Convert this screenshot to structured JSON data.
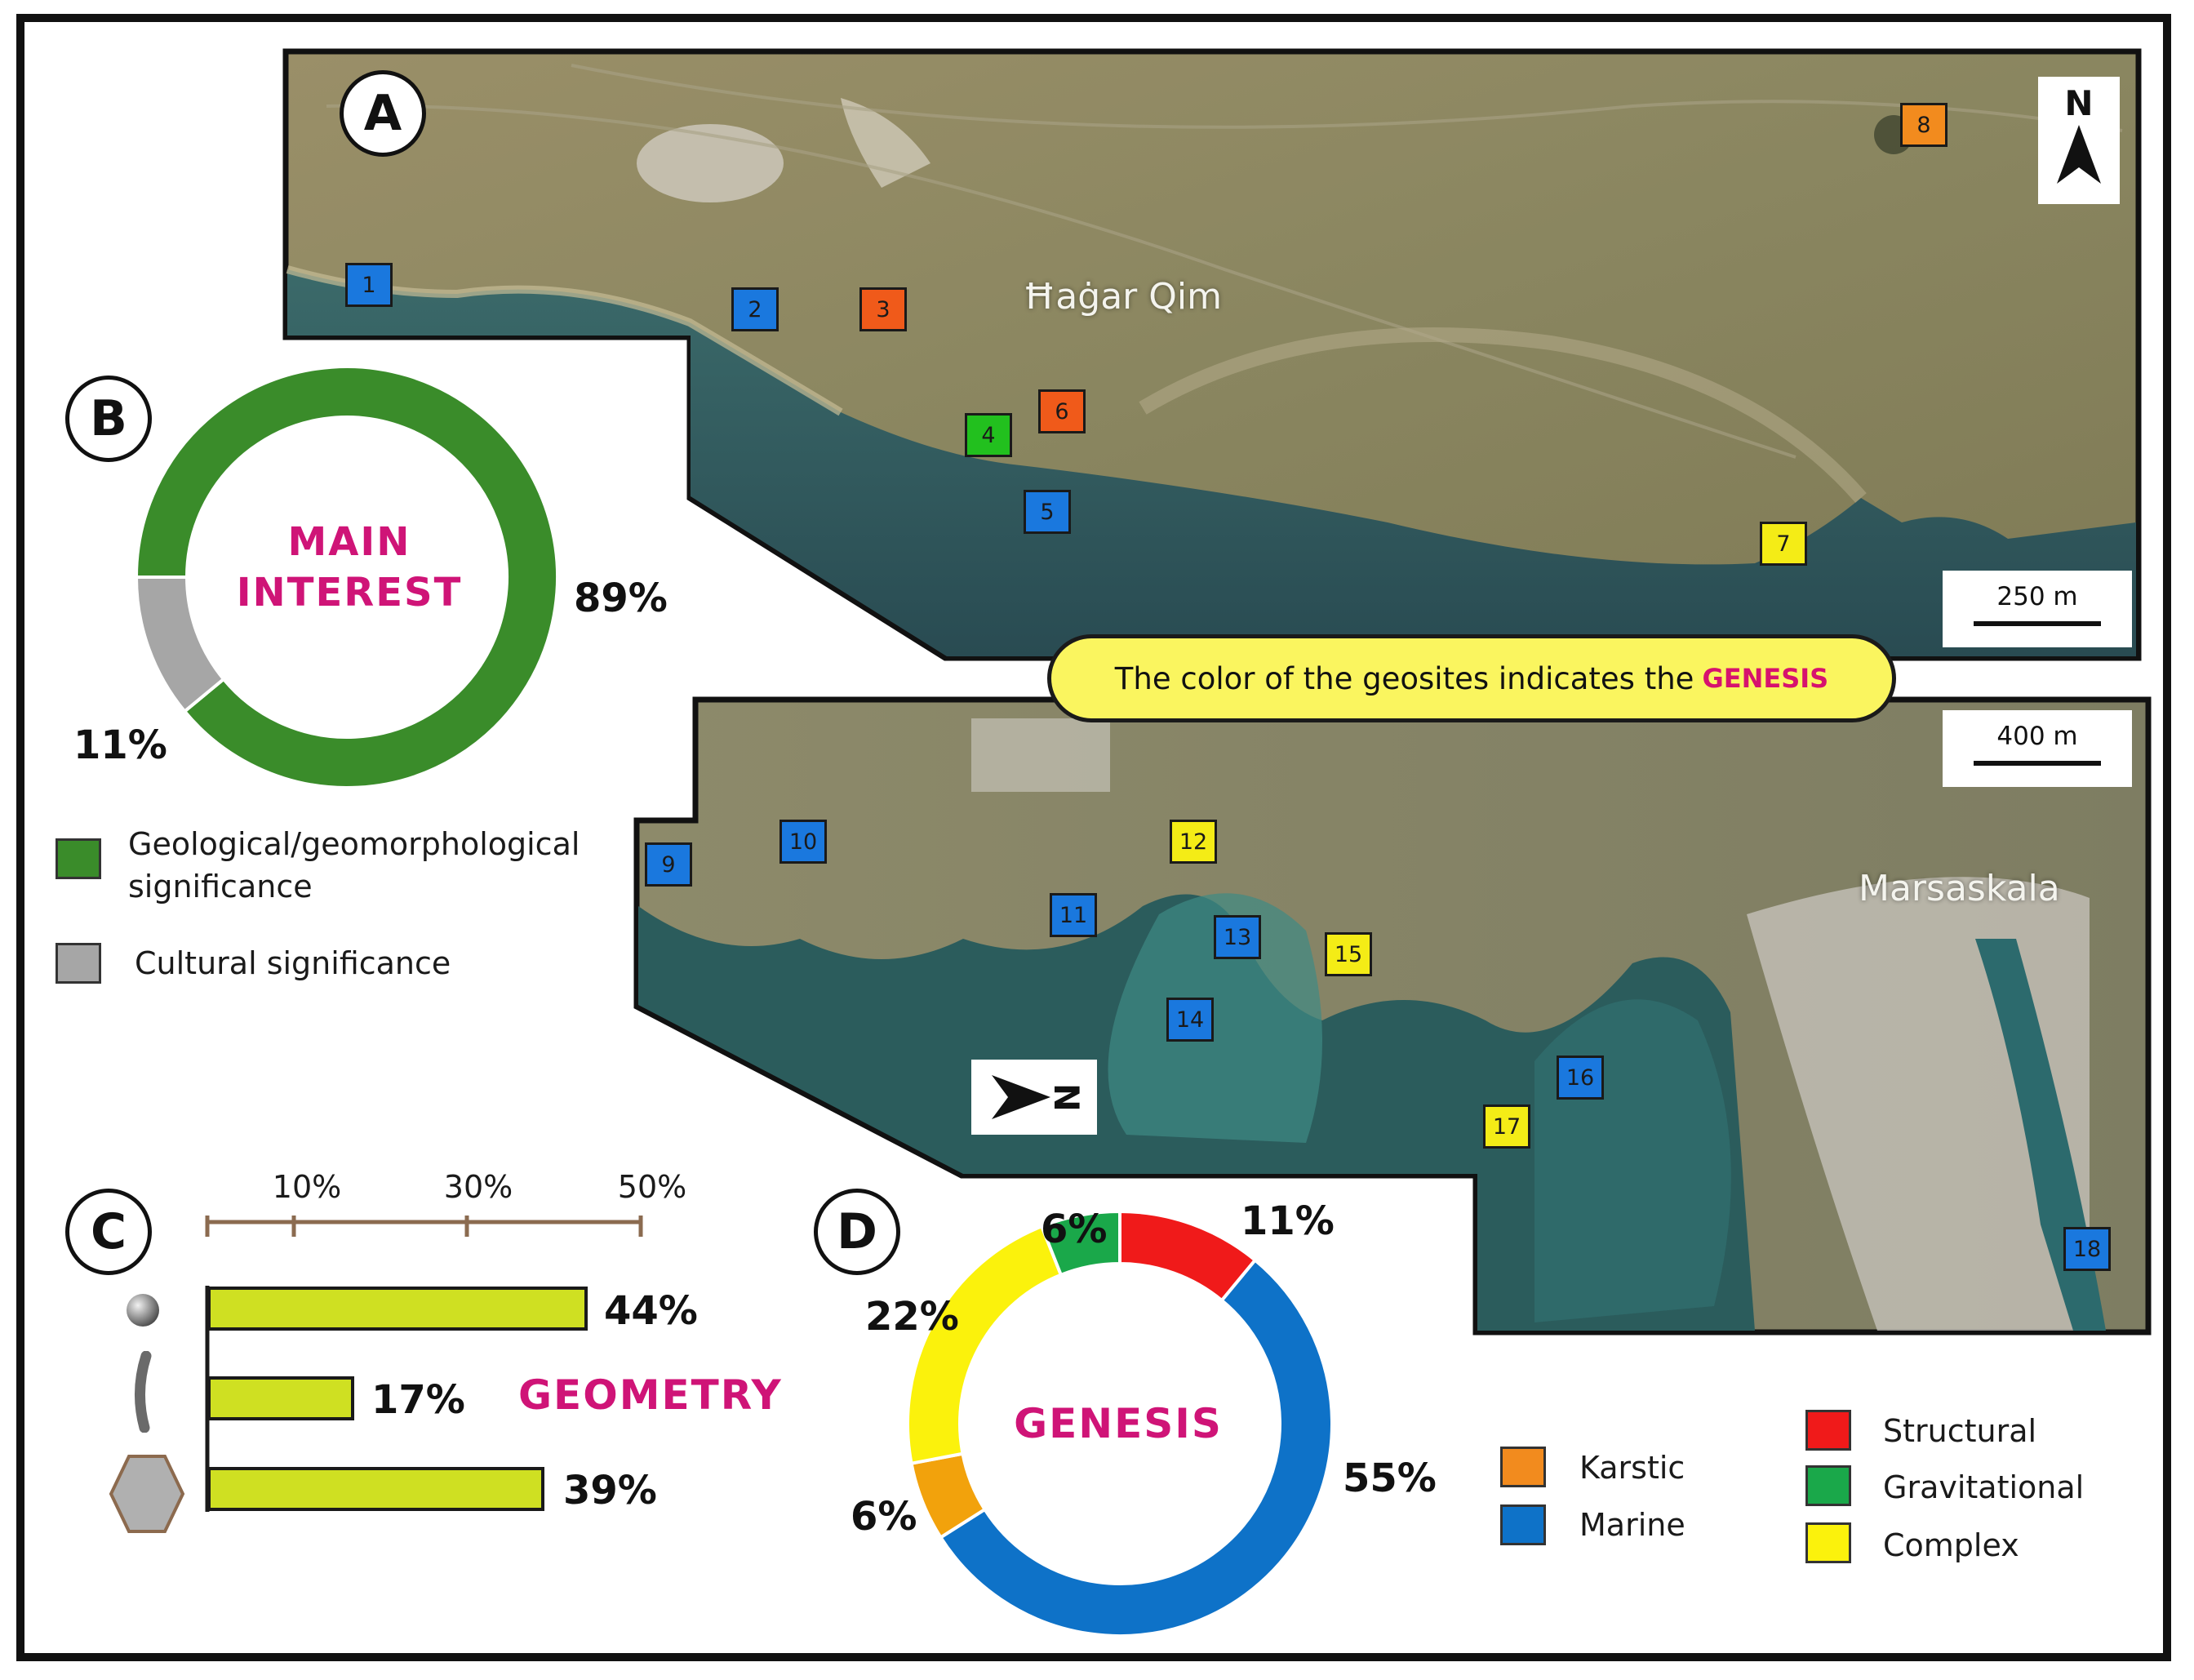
{
  "panels": {
    "a": "A",
    "b": "B",
    "c": "C",
    "d": "D"
  },
  "map_a": {
    "place": "Ħaġar Qim",
    "scale": "250 m",
    "north": "N",
    "geosites": [
      {
        "label": "1",
        "genesis": "Marine"
      },
      {
        "label": "2",
        "genesis": "Marine"
      },
      {
        "label": "3",
        "genesis": "Structural"
      },
      {
        "label": "4",
        "genesis": "Gravitational"
      },
      {
        "label": "5",
        "genesis": "Marine"
      },
      {
        "label": "6",
        "genesis": "Structural"
      },
      {
        "label": "7",
        "genesis": "Complex"
      },
      {
        "label": "8",
        "genesis": "Karstic"
      }
    ]
  },
  "map_b": {
    "place": "Marsaskala",
    "scale": "400 m",
    "north": "N",
    "geosites": [
      {
        "label": "9",
        "genesis": "Marine"
      },
      {
        "label": "10",
        "genesis": "Marine"
      },
      {
        "label": "11",
        "genesis": "Marine"
      },
      {
        "label": "12",
        "genesis": "Complex"
      },
      {
        "label": "13",
        "genesis": "Marine"
      },
      {
        "label": "14",
        "genesis": "Marine"
      },
      {
        "label": "15",
        "genesis": "Complex"
      },
      {
        "label": "16",
        "genesis": "Marine"
      },
      {
        "label": "17",
        "genesis": "Complex"
      },
      {
        "label": "18",
        "genesis": "Marine"
      }
    ]
  },
  "callout": {
    "text": "The color of the geosites indicates the",
    "highlight": "GENESIS"
  },
  "colors": {
    "Marine": "#1a78de",
    "Structural": "#f05a1a",
    "Gravitational": "#22c01e",
    "Complex": "#f4ec16",
    "Karstic": "#f28b1e"
  },
  "chart_data": [
    {
      "type": "pie",
      "title": "MAIN INTEREST",
      "donut": true,
      "labels": [
        "Geological/geomorphological significance",
        "Cultural significance"
      ],
      "values": [
        89,
        11
      ],
      "value_labels": [
        "89%",
        "11%"
      ],
      "colors": [
        "#3a8c2a",
        "#a6a6a6"
      ]
    },
    {
      "type": "bar",
      "title": "GEOMETRY",
      "orientation": "horizontal",
      "categories": [
        "point",
        "line",
        "area"
      ],
      "values": [
        44,
        17,
        39
      ],
      "value_labels": [
        "44%",
        "17%",
        "39%"
      ],
      "tick_labels": [
        "10%",
        "30%",
        "50%"
      ],
      "ticks": [
        10,
        30,
        50
      ],
      "xlim": [
        0,
        50
      ],
      "bar_color": "#cfe022"
    },
    {
      "type": "pie",
      "title": "GENESIS",
      "donut": true,
      "labels": [
        "Structural",
        "Marine",
        "Karstic",
        "Complex",
        "Gravitational"
      ],
      "values": [
        11,
        55,
        6,
        22,
        6
      ],
      "value_labels": [
        "11%",
        "55%",
        "6%",
        "22%",
        "6%"
      ],
      "colors": [
        "#f01a1a",
        "#0e72c8",
        "#f2a20c",
        "#fbf20c",
        "#1aa84a"
      ],
      "legend": [
        "Karstic",
        "Marine",
        "Structural",
        "Gravitational",
        "Complex"
      ]
    }
  ]
}
